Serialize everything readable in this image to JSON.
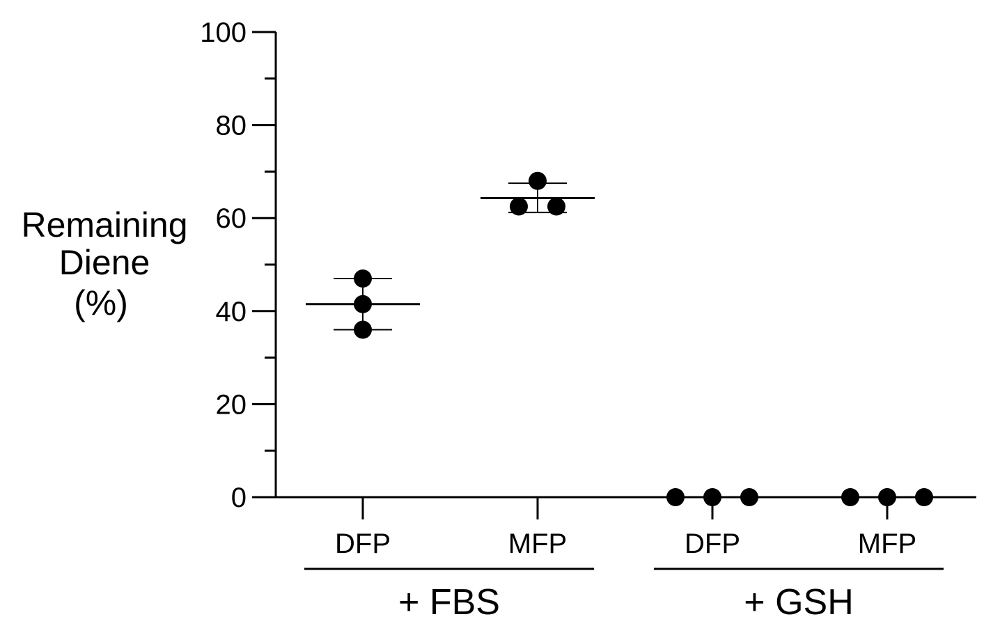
{
  "chart_data": {
    "type": "scatter",
    "ylabel_lines": [
      "Remaining",
      "Diene",
      "(%)"
    ],
    "ylim": [
      0,
      100
    ],
    "yticks": [
      0,
      20,
      40,
      60,
      80,
      100
    ],
    "categories": [
      {
        "label": "DFP",
        "group": "+ FBS",
        "points": [
          47,
          41.5,
          36
        ],
        "mean": 41.5,
        "error": [
          36,
          47
        ]
      },
      {
        "label": "MFP",
        "group": "+ FBS",
        "points": [
          68,
          62.5,
          62.5
        ],
        "mean": 64.3,
        "error": [
          61.2,
          67.5
        ]
      },
      {
        "label": "DFP",
        "group": "+ GSH",
        "points": [
          0,
          0,
          0
        ],
        "mean": 0,
        "error": [
          0,
          0
        ]
      },
      {
        "label": "MFP",
        "group": "+ GSH",
        "points": [
          0,
          0,
          0
        ],
        "mean": 0,
        "error": [
          0,
          0
        ]
      }
    ],
    "groups": [
      "+ FBS",
      "+ GSH"
    ],
    "grid": false,
    "marker_color": "#000000"
  }
}
